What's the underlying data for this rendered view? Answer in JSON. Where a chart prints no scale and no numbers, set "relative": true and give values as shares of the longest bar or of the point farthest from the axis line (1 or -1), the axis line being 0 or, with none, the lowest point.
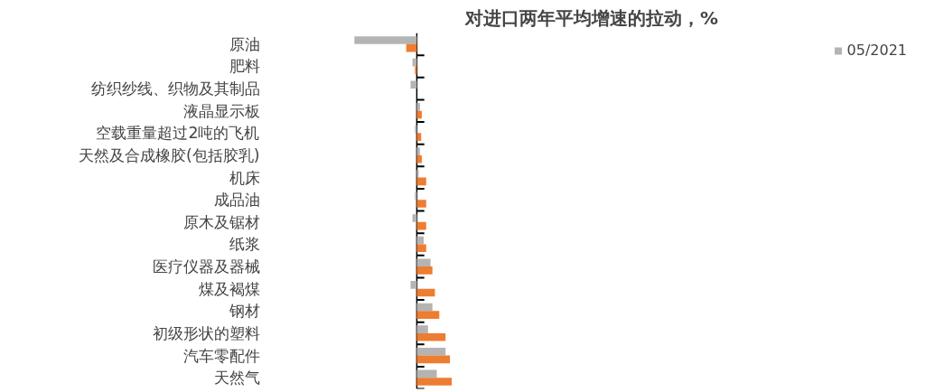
{
  "chart_data": {
    "type": "bar",
    "orientation": "horizontal",
    "relative": true,
    "title": "对进口两年平均增速的拉动，%",
    "categories": [
      "原油",
      "肥料",
      "纺织纱线、织物及其制品",
      "液晶显示板",
      "空载重量超过2吨的飞机",
      "天然及合成橡胶(包括胶乳)",
      "机床",
      "成品油",
      "原木及锯材",
      "纸浆",
      "医疗仪器及器械",
      "煤及褐煤",
      "钢材",
      "初级形状的塑料",
      "汽车零配件",
      "天然气"
    ],
    "series": [
      {
        "name": "05/2021",
        "color": "#b4b4b4",
        "values": [
          -1,
          -0.07,
          -0.1,
          0.05,
          -0.03,
          0.05,
          0.03,
          -0.03,
          -0.07,
          0.11,
          0.22,
          -0.1,
          0.25,
          0.18,
          0.46,
          0.32
        ]
      },
      {
        "color": "#ed7d31",
        "values": [
          -0.17,
          -0.03,
          null,
          0.08,
          0.07,
          0.08,
          0.15,
          0.15,
          0.15,
          0.15,
          0.25,
          0.29,
          0.36,
          0.46,
          0.53,
          0.56
        ]
      }
    ],
    "legend": "top right",
    "grid": false
  }
}
